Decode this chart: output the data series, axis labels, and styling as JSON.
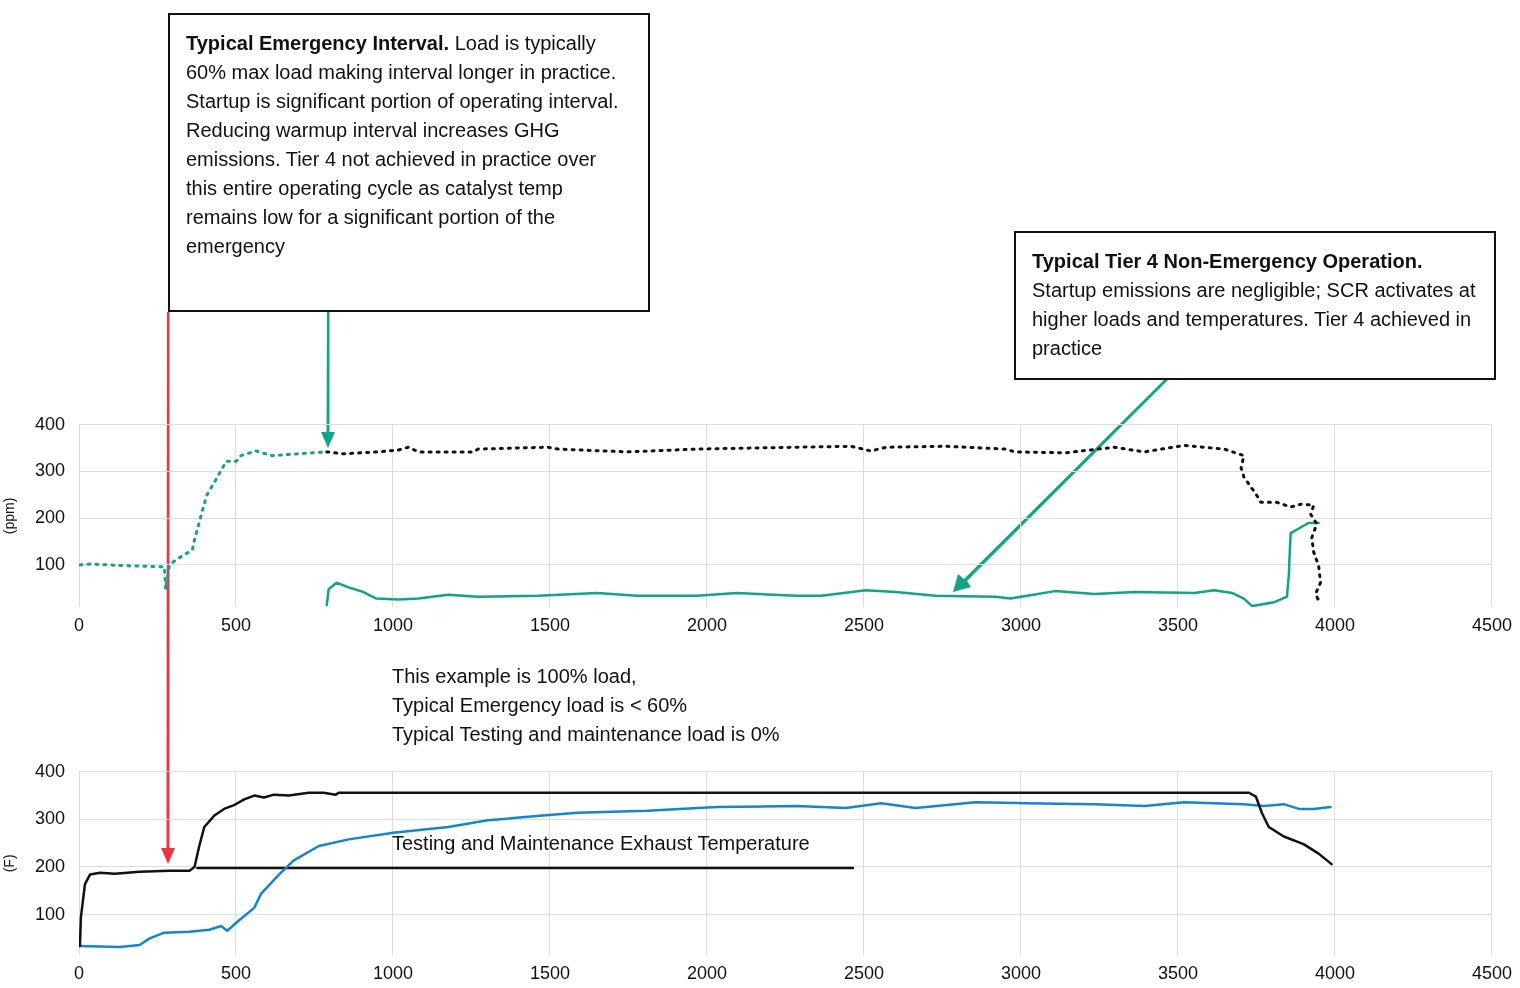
{
  "chart_data": [
    {
      "type": "line",
      "ylabel": "(ppm)",
      "xlim": [
        0,
        4500
      ],
      "xticks": [
        0,
        500,
        1000,
        1500,
        2000,
        2500,
        3000,
        3500,
        4000,
        4500
      ],
      "ylim": [
        10,
        400
      ],
      "yticks": [
        100,
        200,
        300,
        400
      ],
      "grid": true,
      "marker": "none",
      "annotations": [
        "Typical Emergency Interval. Load is typically 60% max load making interval longer in practice. Startup is significant portion of operating interval. Reducing warmup interval increases GHG emissions. Tier 4 not achieved in practice over this entire operating cycle as catalyst temp remains low for a significant portion of the emergency",
        "Typical Tier 4 Non-Emergency Operation. Startup emissions are negligible; SCR activates at higher loads and temperatures. Tier 4 achieved in practice",
        "This example is 100% load,\nTypical Emergency load is < 60%\nTypical Testing and maintenance load is 0%"
      ],
      "series": [
        {
          "color": "#13a386",
          "line_style": "dotted",
          "x": [
            3,
            35,
            162,
            272,
            276,
            288,
            311,
            361,
            368,
            406,
            437,
            469,
            501,
            516,
            564,
            615,
            700,
            786
          ],
          "values": [
            100,
            102,
            98,
            96,
            48,
            100,
            112,
            132,
            154,
            248,
            284,
            322,
            322,
            334,
            344,
            334,
            338,
            342
          ]
        },
        {
          "color": "#111111",
          "line_style": "dotted",
          "x": [
            789,
            843,
            954,
            1017,
            1049,
            1081,
            1255,
            1271,
            1492,
            1524,
            1746,
            1968,
            2285,
            2459,
            2522,
            2570,
            2760,
            2950,
            2981,
            3140,
            3298,
            3393,
            3520,
            3647,
            3710,
            3701,
            3710,
            3748,
            3764,
            3815,
            3859,
            3891,
            3932,
            3923,
            3942,
            3926,
            3932,
            3948,
            3954,
            3938,
            3948
          ],
          "values": [
            342,
            338,
            342,
            346,
            352,
            342,
            342,
            348,
            352,
            348,
            342,
            348,
            352,
            354,
            344,
            352,
            354,
            348,
            342,
            340,
            352,
            342,
            356,
            348,
            334,
            308,
            288,
            252,
            234,
            234,
            224,
            230,
            228,
            208,
            188,
            158,
            128,
            98,
            62,
            38,
            24
          ]
        },
        {
          "color": "#13a386",
          "line_style": "solid",
          "x": [
            789,
            795,
            820,
            859,
            906,
            947,
            1017,
            1081,
            1176,
            1271,
            1461,
            1651,
            1778,
            1968,
            2095,
            2285,
            2364,
            2506,
            2601,
            2728,
            2918,
            2966,
            3108,
            3235,
            3362,
            3552,
            3615,
            3672,
            3710,
            3736,
            3805,
            3847,
            3853,
            3856,
            3859,
            3885,
            3916,
            3948
          ],
          "values": [
            14,
            48,
            62,
            52,
            42,
            28,
            26,
            28,
            36,
            32,
            34,
            40,
            34,
            34,
            40,
            34,
            34,
            46,
            42,
            34,
            32,
            28,
            44,
            38,
            42,
            40,
            46,
            40,
            28,
            12,
            20,
            32,
            78,
            128,
            168,
            178,
            190,
            190
          ]
        }
      ]
    },
    {
      "type": "line",
      "ylabel": "(F)",
      "xlim": [
        0,
        4500
      ],
      "xticks": [
        0,
        500,
        1000,
        1500,
        2000,
        2500,
        3000,
        3500,
        4000,
        4500
      ],
      "ylim": [
        15,
        400
      ],
      "yticks": [
        100,
        200,
        300,
        400
      ],
      "grid": true,
      "marker": "none",
      "annotations": [
        "Testing and Maintenance Exhaust Temperature"
      ],
      "series": [
        {
          "color": "#111111",
          "line_style": "solid",
          "x": [
            3,
            6,
            19,
            35,
            67,
            114,
            193,
            288,
            352,
            368,
            383,
            399,
            431,
            462,
            494,
            526,
            558,
            589,
            621,
            668,
            732,
            779,
            818,
            827,
            3726,
            3748,
            3767,
            3789,
            3837,
            3900,
            3948,
            3989
          ],
          "values": [
            34,
            94,
            164,
            184,
            188,
            186,
            190,
            192,
            192,
            200,
            244,
            284,
            308,
            322,
            330,
            342,
            350,
            346,
            352,
            350,
            356,
            356,
            352,
            356,
            356,
            348,
            314,
            284,
            264,
            248,
            228,
            206
          ]
        },
        {
          "color": "#1287cc",
          "line_style": "solid",
          "x": [
            3,
            130,
            193,
            225,
            272,
            352,
            415,
            453,
            472,
            510,
            558,
            580,
            637,
            684,
            764,
            859,
            1001,
            1176,
            1302,
            1477,
            1588,
            1810,
            2031,
            2285,
            2443,
            2554,
            2665,
            2855,
            3013,
            3235,
            3393,
            3520,
            3710,
            3773,
            3837,
            3885,
            3932,
            3986
          ],
          "values": [
            34,
            32,
            36,
            50,
            62,
            64,
            68,
            76,
            66,
            88,
            114,
            144,
            184,
            214,
            244,
            258,
            272,
            284,
            298,
            308,
            314,
            318,
            326,
            328,
            324,
            334,
            324,
            336,
            334,
            332,
            328,
            336,
            332,
            328,
            332,
            322,
            322,
            326
          ]
        },
        {
          "color": "#111111",
          "line_style": "solid",
          "x": [
            377,
            2465
          ],
          "values": [
            198,
            198
          ]
        }
      ]
    }
  ]
}
